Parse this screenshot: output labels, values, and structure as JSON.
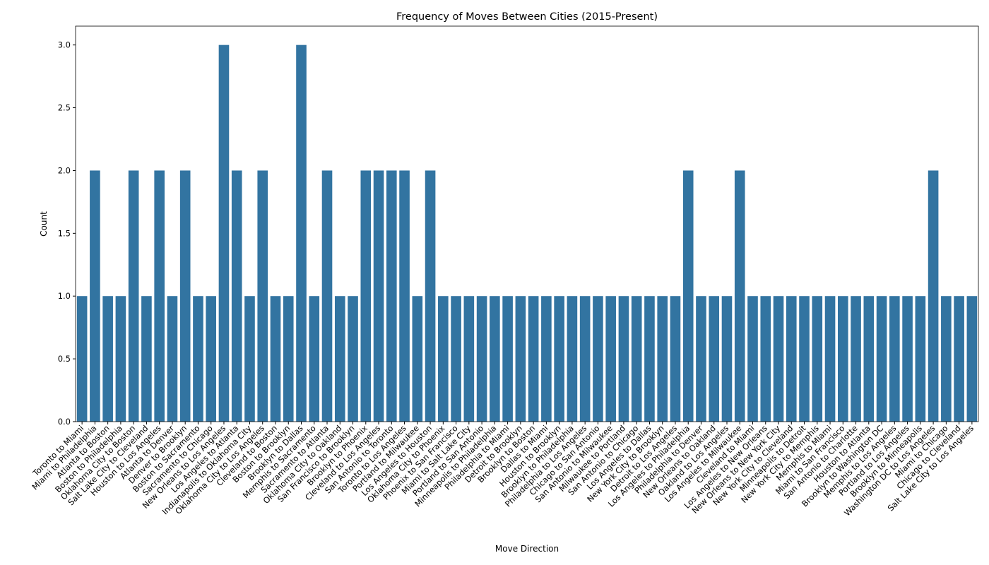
{
  "chart_data": {
    "type": "bar",
    "title": "Frequency of Moves Between Cities (2015-Present)",
    "x_label": "Move Direction",
    "y_label": "Count",
    "color": "#3274a1",
    "categories": [
      "Toronto to Miami",
      "Miami to Philadelphia",
      "Atlanta to Boston",
      "Boston to Philadelphia",
      "Oklahoma City to Boston",
      "Salt Lake City to Cleveland",
      "Houston to Los Angeles",
      "Atlanta to Denver",
      "Denver to Brooklyn",
      "Boston to Sacramento",
      "Sacramento to Chicago",
      "New Orleans to Los Angeles",
      "Los Angeles to Atlanta",
      "Indianapolis to Oklahoma City",
      "Oklahoma City to Los Angeles",
      "Cleveland to Boston",
      "Boston to Brooklyn",
      "Brooklyn to Dallas",
      "Memphis to Sacramento",
      "Sacramento to Atlanta",
      "Oklahoma City to Oakland",
      "San Francisco to Brooklyn",
      "Brooklyn to Phoenix",
      "Cleveland to Los Angeles",
      "San Antonio to Toronto",
      "Toronto to Los Angeles",
      "Portland to Milwaukee",
      "Los Angeles to Houston",
      "Oklahoma City to Phoenix",
      "Phoenix to San Francisco",
      "Miami to Salt Lake City",
      "Portland to San Antonio",
      "Minneapolis to Philadelphia",
      "Philadelphia to Miami",
      "Detroit to Brooklyn",
      "Brooklyn to Boston",
      "Dallas to Miami",
      "Houston to Brooklyn",
      "Brooklyn to Philadelphia",
      "Philadelphia to Los Angeles",
      "Chicago to San Antonio",
      "San Antonio to Milwaukee",
      "Milwaukee to Portland",
      "San Antonio to Chicago",
      "Los Angeles to Dallas",
      "New York City to Brooklyn",
      "Detroit to Los Angeles",
      "Los Angeles to Philadelphia",
      "Philadelphia to Denver",
      "New Orleans to Oakland",
      "Oakland to Los Angeles",
      "Los Angeles to Milwaukee",
      "Cleveland to Miami",
      "Los Angeles to New Orleans",
      "New Orleans to New York City",
      "New York City to Cleveland",
      "Minneapolis to Detroit",
      "New York City to Memphis",
      "Memphis to Miami",
      "Miami to San Francisco",
      "San Antonio to Charlotte",
      "Houston to Atlanta",
      "Brooklyn to Washington DC",
      "Memphis to Los Angeles",
      "Portland to Los Angeles",
      "Brooklyn to Minneapolis",
      "Washington DC to Los Angeles",
      "Miami to Chicago",
      "Chicago to Cleveland",
      "Salt Lake City to Los Angeles"
    ],
    "values": [
      1,
      2,
      1,
      1,
      2,
      1,
      2,
      1,
      2,
      1,
      1,
      3,
      2,
      1,
      2,
      1,
      1,
      3,
      1,
      2,
      1,
      1,
      2,
      2,
      2,
      2,
      1,
      2,
      1,
      1,
      1,
      1,
      1,
      1,
      1,
      1,
      1,
      1,
      1,
      1,
      1,
      1,
      1,
      1,
      1,
      1,
      1,
      2,
      1,
      1,
      1,
      2,
      1,
      1,
      1,
      1,
      1,
      1,
      1,
      1,
      1,
      1,
      1,
      1,
      1,
      1,
      2,
      1,
      1,
      1
    ],
    "ylim": [
      0,
      3.15
    ],
    "yticks": [
      {
        "value": 0,
        "label": "0.0"
      },
      {
        "value": 0.5,
        "label": "0.5"
      },
      {
        "value": 1,
        "label": "1.0"
      },
      {
        "value": 1.5,
        "label": "1.5"
      },
      {
        "value": 2,
        "label": "2.0"
      },
      {
        "value": 2.5,
        "label": "2.5"
      },
      {
        "value": 3,
        "label": "3.0"
      }
    ],
    "grid": false
  }
}
